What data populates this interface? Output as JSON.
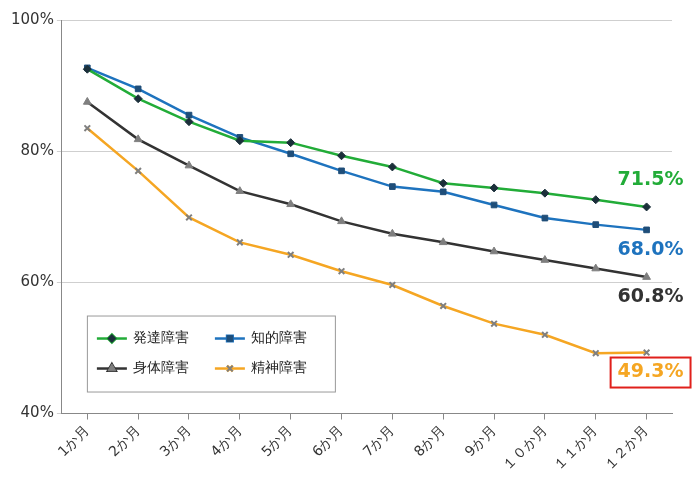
{
  "chart_data": {
    "type": "line",
    "categories": [
      "1か月",
      "2か月",
      "3か月",
      "4か月",
      "5か月",
      "6か月",
      "7か月",
      "8か月",
      "9か月",
      "１０か月",
      "１１か月",
      "１２か月"
    ],
    "series": [
      {
        "name": "発達障害",
        "color": "#22ac38",
        "marker": "diamond",
        "values": [
          92.5,
          88.0,
          84.5,
          81.6,
          81.3,
          79.3,
          77.6,
          75.1,
          74.4,
          73.6,
          72.6,
          71.5
        ],
        "value_labels": [
          null,
          null,
          null,
          null,
          null,
          null,
          null,
          null,
          null,
          null,
          null,
          "71.5%"
        ]
      },
      {
        "name": "知的障害",
        "color": "#1e73be",
        "marker": "square",
        "values": [
          92.7,
          89.5,
          85.5,
          82.1,
          79.6,
          77.0,
          74.6,
          73.8,
          71.8,
          69.8,
          68.8,
          68.0
        ],
        "value_labels": [
          null,
          null,
          null,
          null,
          null,
          null,
          null,
          null,
          null,
          null,
          null,
          "68.0%"
        ]
      },
      {
        "name": "身体障害",
        "color": "#333333",
        "marker": "triangle",
        "values": [
          87.5,
          81.8,
          77.8,
          73.9,
          71.9,
          69.3,
          67.4,
          66.1,
          64.7,
          63.4,
          62.1,
          60.8
        ],
        "value_labels": [
          null,
          null,
          null,
          null,
          null,
          null,
          null,
          null,
          null,
          null,
          null,
          "60.8%"
        ]
      },
      {
        "name": "精神障害",
        "color": "#f5a623",
        "marker": "cross",
        "values": [
          83.5,
          77.0,
          69.9,
          66.1,
          64.2,
          61.7,
          59.6,
          56.4,
          53.7,
          52.0,
          49.2,
          49.3
        ],
        "value_labels": [
          null,
          null,
          null,
          null,
          null,
          null,
          null,
          null,
          null,
          null,
          null,
          "49.3%"
        ]
      }
    ],
    "ylim": [
      40,
      100
    ],
    "yticks": [
      {
        "value": 40,
        "label": "40%"
      },
      {
        "value": 60,
        "label": "60%"
      },
      {
        "value": 80,
        "label": "80%"
      },
      {
        "value": 100,
        "label": "100%"
      }
    ],
    "grid": true,
    "legend": "lower left"
  }
}
